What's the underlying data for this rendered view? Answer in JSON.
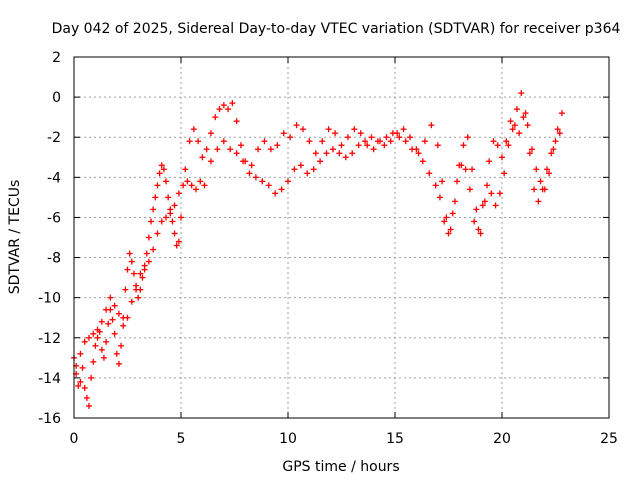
{
  "chart_data": {
    "type": "scatter",
    "title": "Day 042 of 2025, Sidereal Day-to-day VTEC variation (SDTVAR) for receiver p364",
    "xlabel": "GPS time / hours",
    "ylabel": "SDTVAR / TECUs",
    "xlim": [
      0,
      25
    ],
    "ylim": [
      -16,
      2
    ],
    "x_ticks": [
      0,
      5,
      10,
      15,
      20,
      25
    ],
    "y_ticks": [
      -16,
      -14,
      -12,
      -10,
      -8,
      -6,
      -4,
      -2,
      0,
      2
    ],
    "grid": true,
    "marker": "+",
    "series": [
      {
        "name": "SDTVAR",
        "color": "#ff0000",
        "x": [
          0.0,
          0.1,
          0.2,
          0.3,
          0.4,
          0.5,
          0.6,
          0.7,
          0.8,
          0.9,
          1.0,
          1.1,
          1.2,
          1.3,
          1.4,
          1.5,
          1.6,
          1.7,
          1.8,
          1.9,
          2.0,
          2.1,
          2.2,
          2.3,
          2.4,
          2.5,
          2.6,
          2.7,
          2.8,
          2.9,
          3.0,
          3.1,
          3.2,
          3.3,
          3.4,
          3.5,
          3.6,
          3.7,
          3.8,
          3.9,
          4.0,
          4.1,
          4.2,
          4.3,
          4.4,
          4.5,
          4.6,
          4.7,
          4.8,
          4.9,
          5.0,
          5.2,
          5.4,
          5.6,
          5.8,
          6.0,
          6.2,
          6.4,
          6.6,
          6.8,
          7.0,
          7.2,
          7.4,
          7.6,
          7.8,
          8.0,
          8.3,
          8.6,
          8.9,
          9.2,
          9.5,
          9.8,
          10.1,
          10.4,
          10.7,
          11.0,
          11.3,
          11.6,
          11.9,
          12.2,
          12.5,
          12.8,
          13.1,
          13.4,
          13.7,
          14.0,
          14.3,
          14.6,
          14.9,
          15.2,
          15.5,
          15.8,
          16.1,
          16.4,
          16.7,
          17.0,
          17.2,
          17.4,
          17.6,
          17.8,
          18.0,
          18.2,
          18.4,
          18.6,
          18.8,
          19.0,
          19.2,
          19.4,
          19.6,
          19.8,
          20.0,
          20.2,
          20.4,
          20.6,
          20.8,
          21.0,
          21.2,
          21.4,
          21.6,
          21.8,
          22.0,
          22.2,
          22.4,
          22.6,
          22.8,
          0.1,
          0.3,
          0.5,
          0.7,
          0.9,
          1.1,
          1.3,
          1.5,
          1.7,
          1.9,
          2.1,
          2.3,
          2.5,
          2.7,
          2.9,
          3.1,
          3.3,
          3.5,
          3.7,
          3.9,
          4.1,
          4.3,
          4.5,
          4.7,
          4.9,
          5.1,
          5.3,
          5.5,
          5.7,
          5.9,
          6.1,
          6.4,
          6.7,
          7.0,
          7.3,
          7.6,
          7.9,
          8.2,
          8.5,
          8.8,
          9.1,
          9.4,
          9.7,
          10.0,
          10.3,
          10.6,
          10.9,
          11.2,
          11.5,
          11.8,
          12.1,
          12.4,
          12.7,
          13.0,
          13.3,
          13.6,
          13.9,
          14.2,
          14.5,
          14.8,
          15.1,
          15.4,
          15.7,
          16.0,
          16.3,
          16.6,
          16.9,
          17.1,
          17.3,
          17.5,
          17.7,
          17.9,
          18.1,
          18.3,
          18.5,
          18.7,
          18.9,
          19.1,
          19.3,
          19.5,
          19.7,
          19.9,
          20.1,
          20.3,
          20.5,
          20.7,
          20.9,
          21.1,
          21.3,
          21.5,
          21.7,
          21.9,
          22.1,
          22.3,
          22.5,
          22.7
        ],
        "y": [
          -13.0,
          -13.8,
          -14.4,
          -14.2,
          -13.5,
          -14.5,
          -15.0,
          -15.4,
          -14.0,
          -13.2,
          -12.4,
          -12.0,
          -11.7,
          -12.6,
          -13.0,
          -12.2,
          -11.3,
          -10.6,
          -11.1,
          -11.8,
          -12.8,
          -13.3,
          -12.4,
          -11.0,
          -9.6,
          -8.6,
          -7.8,
          -8.2,
          -8.8,
          -9.6,
          -10.0,
          -9.6,
          -9.0,
          -8.4,
          -7.8,
          -7.0,
          -6.2,
          -5.6,
          -5.0,
          -4.4,
          -3.8,
          -3.4,
          -3.6,
          -4.2,
          -5.0,
          -5.6,
          -6.2,
          -6.8,
          -7.4,
          -7.2,
          -6.0,
          -3.6,
          -2.2,
          -1.6,
          -2.2,
          -3.0,
          -2.6,
          -1.8,
          -1.0,
          -0.6,
          -0.4,
          -0.6,
          -0.3,
          -1.2,
          -2.4,
          -3.2,
          -3.4,
          -2.6,
          -2.2,
          -2.6,
          -2.4,
          -1.8,
          -2.0,
          -1.4,
          -1.6,
          -2.2,
          -2.8,
          -2.2,
          -1.6,
          -1.8,
          -2.4,
          -2.0,
          -1.6,
          -1.8,
          -2.4,
          -2.6,
          -2.2,
          -2.0,
          -1.8,
          -2.0,
          -2.2,
          -2.6,
          -2.8,
          -2.2,
          -1.4,
          -2.4,
          -4.2,
          -6.0,
          -6.6,
          -5.2,
          -3.4,
          -2.4,
          -2.0,
          -3.6,
          -5.6,
          -6.8,
          -5.2,
          -3.2,
          -2.2,
          -2.4,
          -3.0,
          -2.2,
          -1.2,
          -1.4,
          -1.8,
          -1.0,
          -1.4,
          -2.6,
          -3.6,
          -4.2,
          -4.6,
          -3.8,
          -2.6,
          -1.6,
          -0.8,
          -13.4,
          -12.8,
          -12.2,
          -12.0,
          -11.8,
          -11.6,
          -11.2,
          -10.6,
          -10.0,
          -10.4,
          -10.8,
          -11.4,
          -11.0,
          -10.2,
          -9.4,
          -8.8,
          -8.6,
          -8.2,
          -7.6,
          -6.8,
          -6.2,
          -6.0,
          -5.8,
          -5.4,
          -4.8,
          -4.4,
          -4.2,
          -4.4,
          -4.6,
          -4.2,
          -4.4,
          -3.2,
          -2.6,
          -2.2,
          -2.6,
          -2.8,
          -3.2,
          -3.8,
          -4.0,
          -4.2,
          -4.4,
          -4.8,
          -4.6,
          -4.2,
          -3.6,
          -3.4,
          -3.8,
          -3.6,
          -3.2,
          -2.8,
          -2.6,
          -2.8,
          -3.0,
          -2.8,
          -2.4,
          -2.2,
          -2.0,
          -2.2,
          -2.4,
          -2.2,
          -1.8,
          -1.6,
          -2.0,
          -2.6,
          -3.2,
          -3.8,
          -4.4,
          -5.0,
          -6.2,
          -6.8,
          -5.8,
          -4.2,
          -3.4,
          -3.6,
          -4.6,
          -6.2,
          -6.6,
          -5.4,
          -4.4,
          -4.8,
          -5.4,
          -4.8,
          -3.8,
          -2.4,
          -1.6,
          -0.6,
          0.2,
          -0.8,
          -2.8,
          -4.6,
          -5.2,
          -4.6,
          -3.6,
          -2.8,
          -2.2,
          -1.8
        ]
      }
    ]
  }
}
